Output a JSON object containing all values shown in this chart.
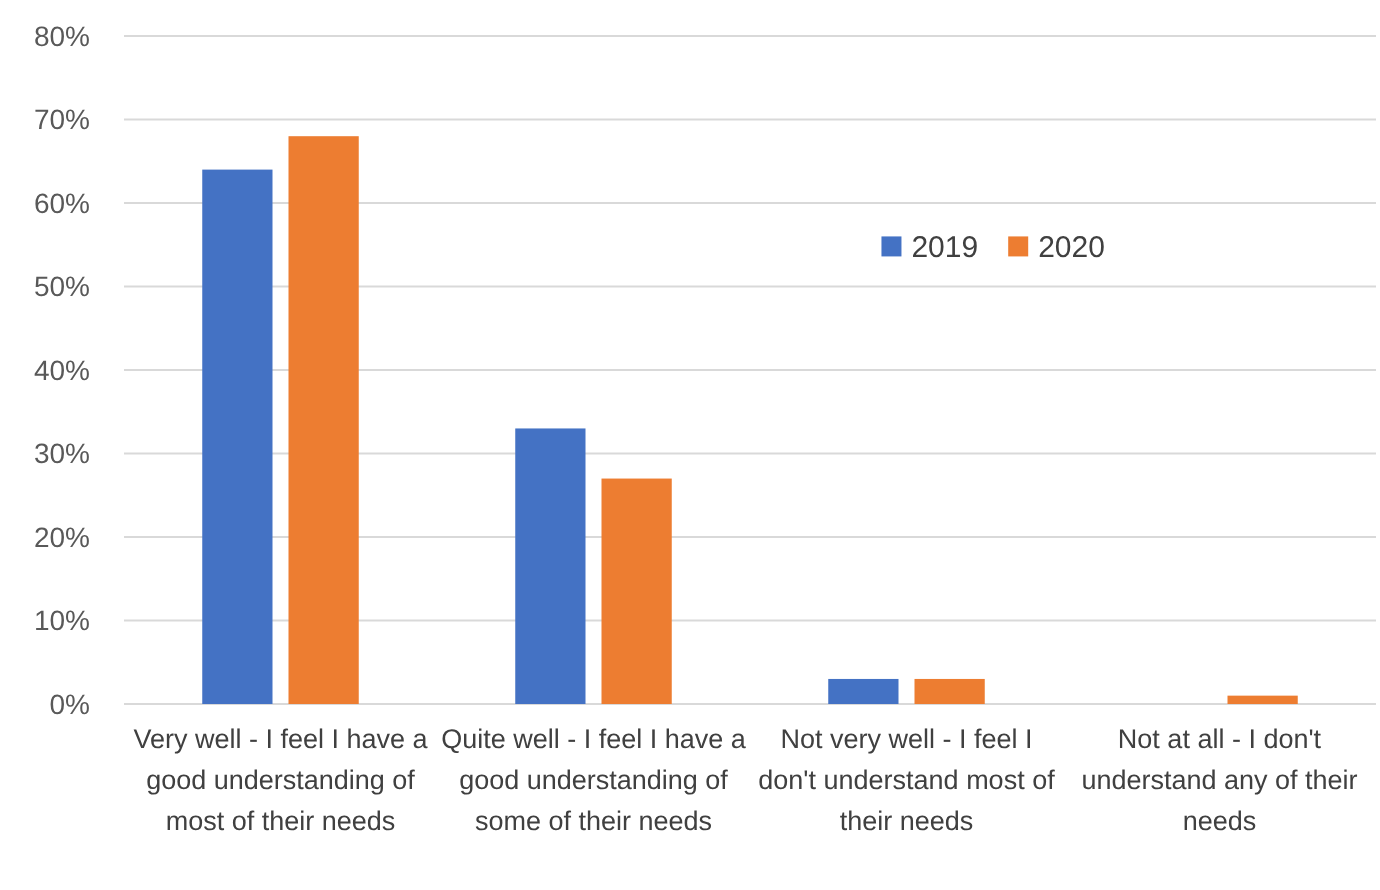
{
  "chart_data": {
    "type": "bar",
    "categories": [
      "Very well - I feel I have a good understanding of most of their needs",
      "Quite well - I feel I have a good understanding of some of their needs",
      "Not very well - I feel I don't understand most of their needs",
      "Not at all - I don't understand any of their needs"
    ],
    "series": [
      {
        "name": "2019",
        "color": "#4472c4",
        "values": [
          64,
          33,
          3,
          0
        ]
      },
      {
        "name": "2020",
        "color": "#ed7d31",
        "values": [
          68,
          27,
          3,
          1
        ]
      }
    ],
    "ylim": [
      0,
      80
    ],
    "yticks": [
      {
        "value": 0,
        "label": "0%"
      },
      {
        "value": 10,
        "label": "10%"
      },
      {
        "value": 20,
        "label": "20%"
      },
      {
        "value": 30,
        "label": "30%"
      },
      {
        "value": 40,
        "label": "40%"
      },
      {
        "value": 50,
        "label": "50%"
      },
      {
        "value": 60,
        "label": "60%"
      },
      {
        "value": 70,
        "label": "70%"
      },
      {
        "value": 80,
        "label": "80%"
      }
    ],
    "grid": "y",
    "legend": "top right"
  }
}
